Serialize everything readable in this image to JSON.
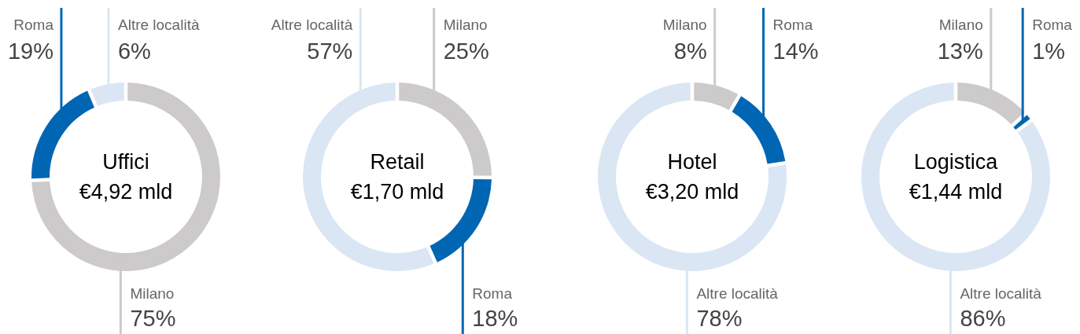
{
  "chart_data": [
    {
      "type": "donut",
      "title": "Uffici",
      "subtitle": "€4,92 mld",
      "categories": [
        "Milano",
        "Roma",
        "Altre località"
      ],
      "values": [
        75,
        19,
        6
      ],
      "value_labels": [
        "75%",
        "19%",
        "6%"
      ],
      "colors": [
        "#cccacb",
        "#0066b3",
        "#dae6f3"
      ],
      "data_labels": true
    },
    {
      "type": "donut",
      "title": "Retail",
      "subtitle": "€1,70 mld",
      "categories": [
        "Milano",
        "Roma",
        "Altre località"
      ],
      "values": [
        25,
        18,
        57
      ],
      "value_labels": [
        "25%",
        "18%",
        "57%"
      ],
      "colors": [
        "#cccacb",
        "#0066b3",
        "#dae6f3"
      ],
      "data_labels": true
    },
    {
      "type": "donut",
      "title": "Hotel",
      "subtitle": "€3,20 mld",
      "categories": [
        "Milano",
        "Roma",
        "Altre località"
      ],
      "values": [
        8,
        14,
        78
      ],
      "value_labels": [
        "8%",
        "14%",
        "78%"
      ],
      "colors": [
        "#cccacb",
        "#0066b3",
        "#dae6f3"
      ],
      "data_labels": true
    },
    {
      "type": "donut",
      "title": "Logistica",
      "subtitle": "€1,44 mld",
      "categories": [
        "Milano",
        "Roma",
        "Altre località"
      ],
      "values": [
        13,
        1,
        86
      ],
      "value_labels": [
        "13%",
        "1%",
        "86%"
      ],
      "colors": [
        "#cccacb",
        "#0066b3",
        "#dae6f3"
      ],
      "data_labels": true
    }
  ]
}
